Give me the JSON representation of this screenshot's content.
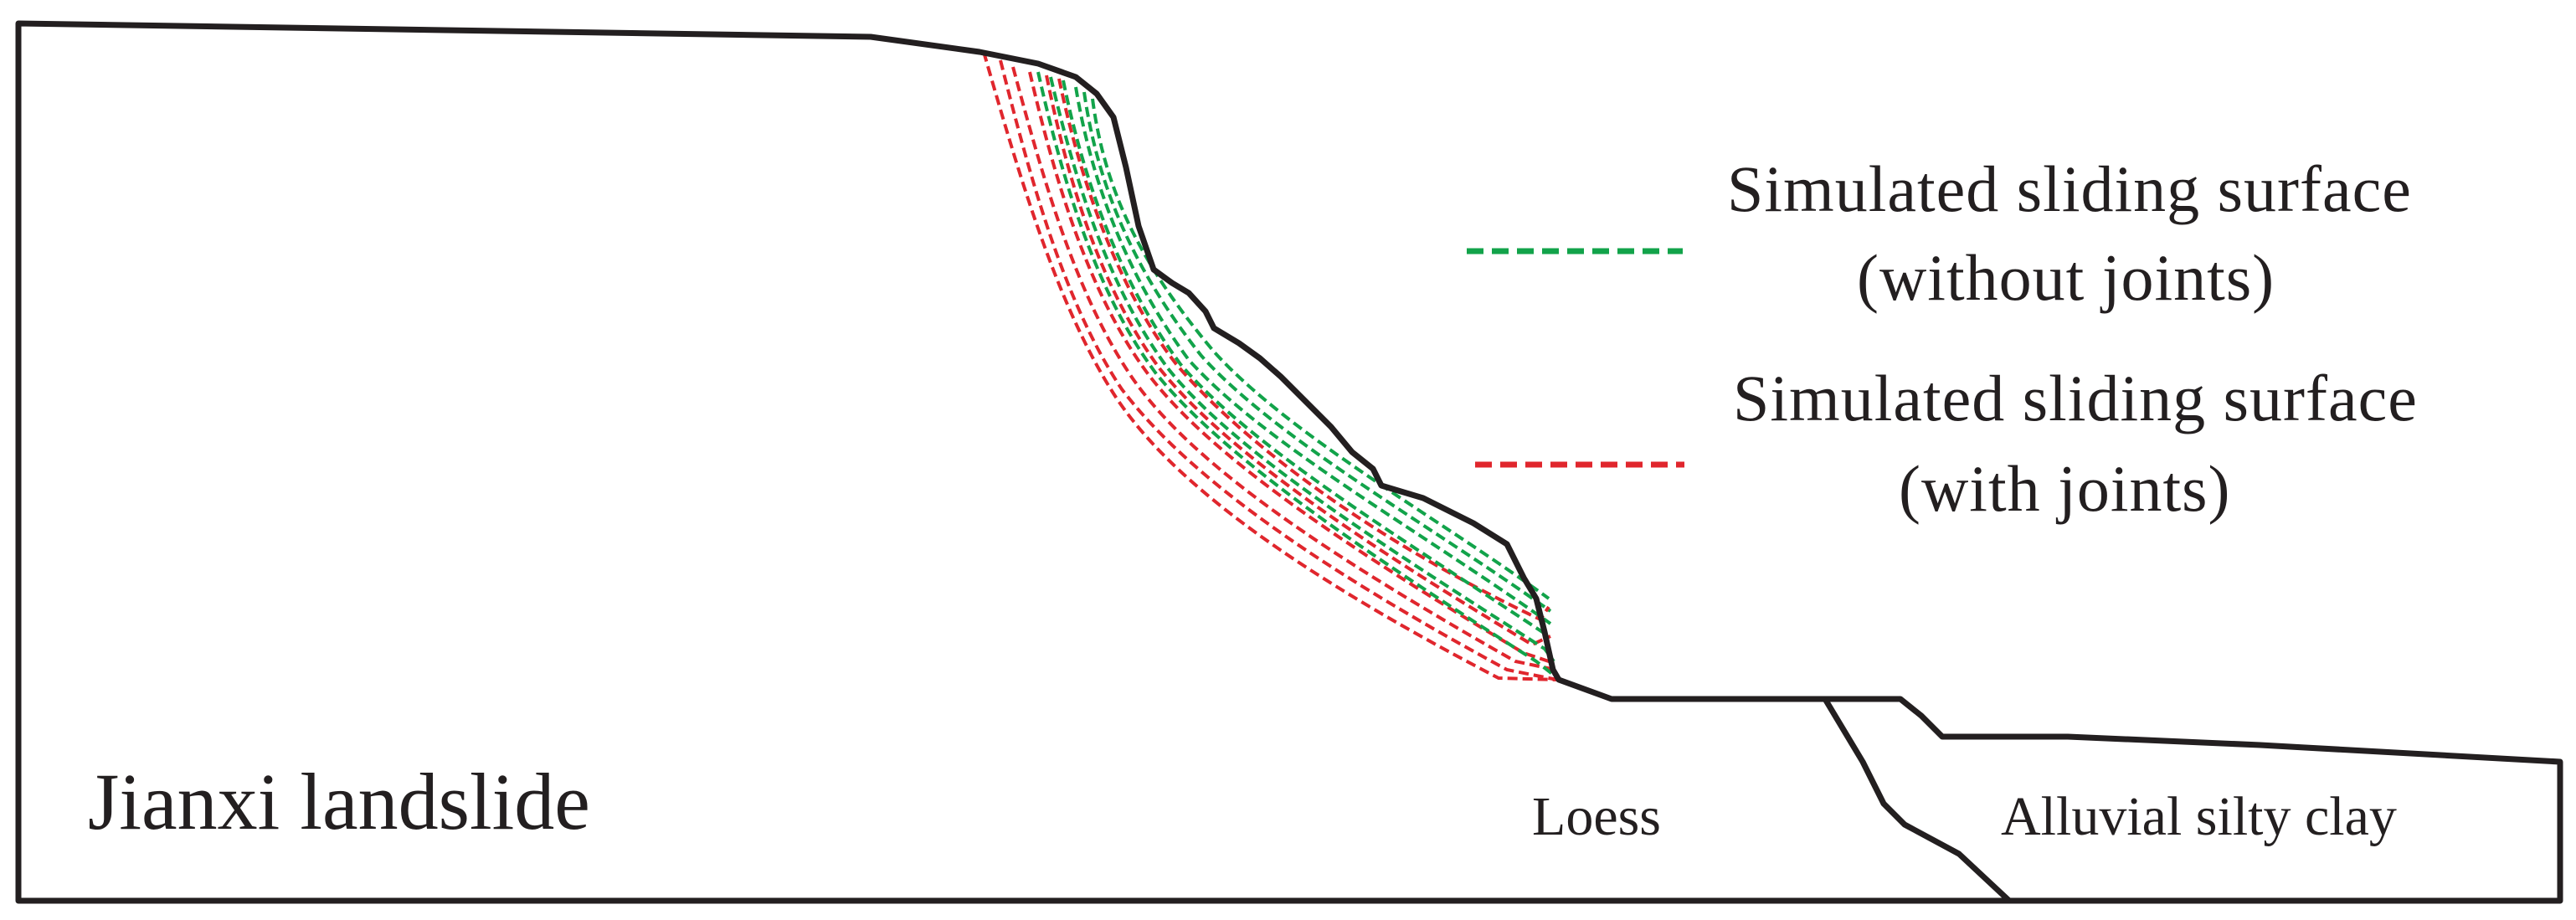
{
  "diagram": {
    "title": "Jianxi landslide",
    "legend": [
      {
        "line_color": "#12a34a",
        "line1": "Simulated sliding surface",
        "line2": "(without joints)"
      },
      {
        "line_color": "#e0262d",
        "line1": "Simulated sliding surface",
        "line2": "(with joints)"
      }
    ],
    "soil_labels": {
      "loess": "Loess",
      "alluvial": "Alluvial silty clay"
    },
    "colors": {
      "outline": "#231f20",
      "without_joints": "#12a34a",
      "with_joints": "#e0262d",
      "background": "#ffffff"
    },
    "sliding_surface_counts": {
      "without_joints": 6,
      "with_joints": 6
    }
  }
}
